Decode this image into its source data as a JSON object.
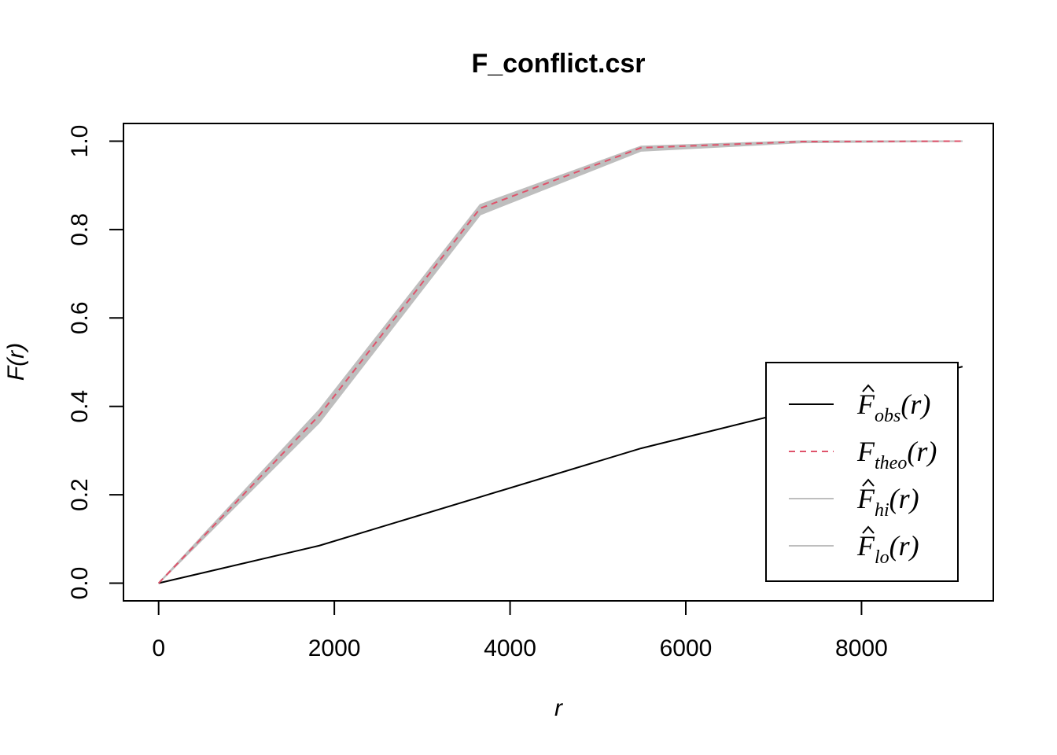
{
  "chart_data": {
    "type": "line",
    "title": "F_conflict.csr",
    "xlabel": "r",
    "ylabel": "F(r)",
    "xlim": [
      -400,
      9500
    ],
    "ylim": [
      -0.04,
      1.04
    ],
    "x_ticks": [
      0,
      2000,
      4000,
      6000,
      8000
    ],
    "x_tick_labels": [
      "0",
      "2000",
      "4000",
      "6000",
      "8000"
    ],
    "y_ticks": [
      0.0,
      0.2,
      0.4,
      0.6,
      0.8,
      1.0
    ],
    "y_tick_labels": [
      "0.0",
      "0.2",
      "0.4",
      "0.6",
      "0.8",
      "1.0"
    ],
    "legend_position": "bottom-right",
    "series": [
      {
        "name": "obs",
        "legend_main": "F",
        "legend_sub": "obs",
        "legend_hat": true,
        "color": "#000000",
        "dash": "solid",
        "x": [
          0,
          1830,
          3660,
          5490,
          7320,
          9150
        ],
        "y": [
          0.0,
          0.085,
          0.195,
          0.305,
          0.395,
          0.49
        ]
      },
      {
        "name": "theo",
        "legend_main": "F",
        "legend_sub": "theo",
        "legend_hat": false,
        "color": "#DF536B",
        "dash": "dashed",
        "x": [
          0,
          1830,
          3660,
          5490,
          7320,
          9150
        ],
        "y": [
          0.0,
          0.38,
          0.848,
          0.985,
          0.999,
          1.0
        ]
      },
      {
        "name": "hi",
        "legend_main": "F",
        "legend_sub": "hi",
        "legend_hat": true,
        "color": "#BEBEBE",
        "dash": "solid",
        "x": [
          0,
          1830,
          3660,
          5490,
          7320,
          9150
        ],
        "y": [
          0.0,
          0.392,
          0.856,
          0.988,
          1.0,
          1.0
        ]
      },
      {
        "name": "lo",
        "legend_main": "F",
        "legend_sub": "lo",
        "legend_hat": true,
        "color": "#BEBEBE",
        "dash": "solid",
        "x": [
          0,
          1830,
          3660,
          5490,
          7320,
          9150
        ],
        "y": [
          0.0,
          0.364,
          0.834,
          0.978,
          0.997,
          1.0
        ]
      }
    ]
  }
}
